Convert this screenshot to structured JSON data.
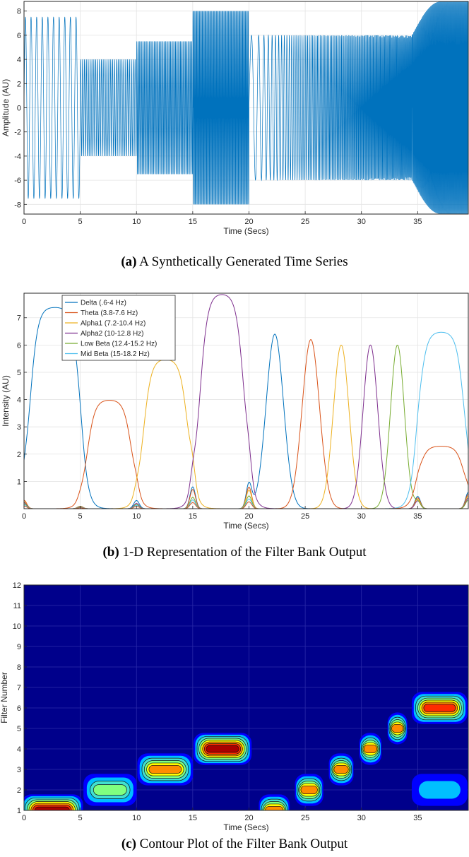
{
  "captions": {
    "a": {
      "label": "(a)",
      "text": " A Synthetically Generated Time Series"
    },
    "b": {
      "label": "(b)",
      "text": " 1-D Representation of the Filter Bank Output"
    },
    "c": {
      "label": "(c)",
      "text": " Contour Plot of the Filter Bank Output"
    }
  },
  "colors": {
    "signal": "#0072BD",
    "series": [
      "#0072BD",
      "#D95319",
      "#EDB120",
      "#7E2F8E",
      "#77AC30",
      "#4DBEEE"
    ],
    "contour_background": "#00008B",
    "contour_levels": [
      "#0000FF",
      "#00BFFF",
      "#40E0D0",
      "#7FFF7F",
      "#FFFF00",
      "#FF8C00",
      "#FF2A00",
      "#AA0000"
    ]
  },
  "chart_data": [
    {
      "type": "line",
      "title": "",
      "xlabel": "Time (Secs)",
      "ylabel": "Amplitude (AU)",
      "xlim": [
        0,
        39.5
      ],
      "ylim": [
        -8.8,
        8.8
      ],
      "xticks": [
        0,
        5,
        10,
        15,
        20,
        25,
        30,
        35
      ],
      "yticks": [
        -8,
        -6,
        -4,
        -2,
        0,
        2,
        4,
        6,
        8
      ],
      "grid": true,
      "segments": [
        {
          "t_start": 0,
          "t_end": 5,
          "amplitude": 7.5,
          "freq_hz": 2
        },
        {
          "t_start": 5,
          "t_end": 10,
          "amplitude": 4,
          "freq_hz": 6
        },
        {
          "t_start": 10,
          "t_end": 15,
          "amplitude": 5.5,
          "freq_hz": 9
        },
        {
          "t_start": 15,
          "t_end": 20,
          "amplitude": 8,
          "freq_hz": 12
        },
        {
          "t_start": 20,
          "t_end": 34.5,
          "amplitude": 6,
          "freq_hz_start": 1,
          "freq_hz_end": 16
        },
        {
          "t_start": 34.5,
          "t_end": 39.5,
          "amplitude_envelope": [
            6,
            8.8
          ],
          "freq_hz": 16
        }
      ]
    },
    {
      "type": "line",
      "title": "",
      "xlabel": "Time (Secs)",
      "ylabel": "Intensity (AU)",
      "xlim": [
        0,
        39.5
      ],
      "ylim": [
        0,
        7.9
      ],
      "xticks": [
        0,
        5,
        10,
        15,
        20,
        25,
        30,
        35
      ],
      "yticks": [
        1,
        2,
        3,
        4,
        5,
        6,
        7
      ],
      "grid": true,
      "legend_position": "top-left",
      "series": [
        {
          "name": "Delta (.6-4 Hz)",
          "plateaus": [
            [
              0.5,
              5.0,
              7.4
            ]
          ],
          "peaks": [
            [
              22.3,
              6.4,
              2.0
            ]
          ]
        },
        {
          "name": "Theta (3.8-7.6 Hz)",
          "plateaus": [
            [
              5.6,
              9.6,
              4.0
            ]
          ],
          "peaks": [
            [
              25.5,
              6.2,
              2.0
            ]
          ]
        },
        {
          "name": "Alpha1 (7.2-10.4 Hz)",
          "plateaus": [
            [
              10.6,
              14.6,
              5.5
            ]
          ],
          "peaks": [
            [
              28.2,
              6.0,
              1.8
            ]
          ]
        },
        {
          "name": "Alpha2 (10-12.8 Hz)",
          "plateaus": [
            [
              15.6,
              19.6,
              7.9
            ]
          ],
          "peaks": [
            [
              30.8,
              6.0,
              1.7
            ]
          ]
        },
        {
          "name": "Low Beta (12.4-15.2 Hz)",
          "plateaus": [],
          "peaks": [
            [
              33.2,
              6.0,
              1.6
            ]
          ]
        },
        {
          "name": "Mid Beta (15-18.2 Hz)",
          "plateaus": [
            [
              35.0,
              39.2,
              6.5
            ]
          ],
          "peaks": []
        },
        {
          "name": "",
          "plateaus": [
            [
              35.0,
              39.2,
              2.3
            ]
          ],
          "peaks": []
        }
      ]
    },
    {
      "type": "heatmap",
      "title": "",
      "xlabel": "Time (Secs)",
      "ylabel": "Filter Number",
      "xlim": [
        0,
        39.5
      ],
      "ylim": [
        1,
        12
      ],
      "xticks": [
        0,
        5,
        10,
        15,
        20,
        25,
        30,
        35
      ],
      "yticks": [
        1,
        2,
        3,
        4,
        5,
        6,
        7,
        8,
        9,
        10,
        11,
        12
      ],
      "grid": true,
      "blobs": [
        {
          "t_start": 0.0,
          "t_end": 5.0,
          "filter": 1.0,
          "intensity": 7.5
        },
        {
          "t_start": 5.5,
          "t_end": 9.8,
          "filter": 2.0,
          "intensity": 4.0
        },
        {
          "t_start": 10.3,
          "t_end": 14.8,
          "filter": 3.0,
          "intensity": 5.5
        },
        {
          "t_start": 15.3,
          "t_end": 20.0,
          "filter": 4.0,
          "intensity": 8.0
        },
        {
          "t_start": 21.0,
          "t_end": 23.5,
          "filter": 1.0,
          "intensity": 6.4
        },
        {
          "t_start": 24.2,
          "t_end": 26.5,
          "filter": 2.0,
          "intensity": 6.2
        },
        {
          "t_start": 27.2,
          "t_end": 29.2,
          "filter": 3.0,
          "intensity": 6.0
        },
        {
          "t_start": 29.9,
          "t_end": 31.7,
          "filter": 4.0,
          "intensity": 6.0
        },
        {
          "t_start": 32.4,
          "t_end": 34.0,
          "filter": 5.0,
          "intensity": 6.0
        },
        {
          "t_start": 34.7,
          "t_end": 39.2,
          "filter": 6.0,
          "intensity": 6.5
        },
        {
          "t_start": 34.7,
          "t_end": 39.2,
          "filter": 2.0,
          "intensity": 2.3
        }
      ]
    }
  ]
}
